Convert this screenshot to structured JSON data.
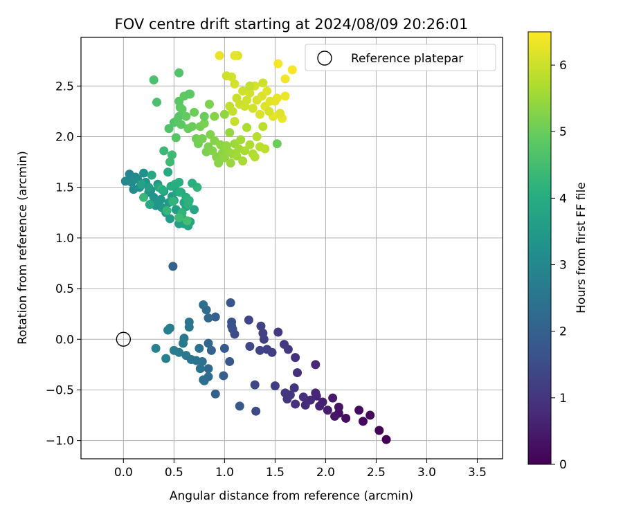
{
  "chart_data": {
    "type": "scatter",
    "title": "FOV centre drift starting at 2024/08/09 20:26:01",
    "xlabel": "Angular distance from reference (arcmin)",
    "ylabel": "Rotation from reference (arcmin)",
    "colorbar_label": "Hours from first FF file",
    "xlim": [
      -0.42,
      3.75
    ],
    "ylim": [
      -1.18,
      2.98
    ],
    "x_ticks": [
      0.0,
      0.5,
      1.0,
      1.5,
      2.0,
      2.5,
      3.0,
      3.5
    ],
    "x_tick_labels": [
      "0.0",
      "0.5",
      "1.0",
      "1.5",
      "2.0",
      "2.5",
      "3.0",
      "3.5"
    ],
    "y_ticks": [
      -1.0,
      -0.5,
      0.0,
      0.5,
      1.0,
      1.5,
      2.0,
      2.5
    ],
    "y_tick_labels": [
      "−1.0",
      "−0.5",
      "0.0",
      "0.5",
      "1.0",
      "1.5",
      "2.0",
      "2.5"
    ],
    "colorbar_range": [
      0,
      6.5
    ],
    "colorbar_ticks": [
      0,
      1,
      2,
      3,
      4,
      5,
      6
    ],
    "colorbar_tick_labels": [
      "0",
      "1",
      "2",
      "3",
      "4",
      "5",
      "6"
    ],
    "colormap": "viridis",
    "grid": true,
    "legend_position": "top-right",
    "legend": [
      {
        "label": "Reference platepar",
        "marker": "open-circle",
        "x": 0.0,
        "y": 0.0
      }
    ],
    "series": [
      {
        "points": [
          [
            2.6,
            -0.99,
            0.0
          ],
          [
            2.53,
            -0.9,
            0.05
          ],
          [
            2.44,
            -0.75,
            0.1
          ],
          [
            2.37,
            -0.81,
            0.15
          ],
          [
            2.33,
            -0.7,
            0.2
          ],
          [
            2.2,
            -0.78,
            0.25
          ],
          [
            2.13,
            -0.73,
            0.3
          ],
          [
            2.13,
            -0.67,
            0.35
          ],
          [
            2.09,
            -0.76,
            0.4
          ],
          [
            2.07,
            -0.58,
            0.45
          ],
          [
            2.02,
            -0.7,
            0.5
          ],
          [
            1.97,
            -0.62,
            0.55
          ],
          [
            1.94,
            -0.66,
            0.6
          ],
          [
            1.91,
            -0.56,
            0.65
          ],
          [
            1.9,
            -0.53,
            0.7
          ],
          [
            1.9,
            -0.25,
            0.72
          ],
          [
            1.85,
            -0.6,
            0.76
          ],
          [
            1.8,
            -0.65,
            0.8
          ],
          [
            1.78,
            -0.57,
            0.85
          ],
          [
            1.72,
            -0.33,
            0.88
          ],
          [
            1.7,
            -0.64,
            0.9
          ],
          [
            1.7,
            -0.18,
            0.93
          ],
          [
            1.69,
            -0.48,
            0.96
          ],
          [
            1.65,
            -0.55,
            1.0
          ],
          [
            1.62,
            -0.59,
            1.03
          ],
          [
            1.6,
            -0.53,
            1.06
          ],
          [
            1.63,
            -0.1,
            1.08
          ],
          [
            1.59,
            -0.05,
            1.1
          ],
          [
            1.53,
            0.07,
            1.13
          ],
          [
            1.5,
            -0.46,
            1.15
          ],
          [
            1.47,
            -0.13,
            1.18
          ],
          [
            1.42,
            -0.1,
            1.2
          ],
          [
            1.39,
            0.0,
            1.23
          ],
          [
            1.38,
            0.06,
            1.25
          ],
          [
            1.36,
            0.13,
            1.28
          ],
          [
            1.35,
            -0.11,
            1.3
          ],
          [
            1.3,
            -0.45,
            1.33
          ],
          [
            1.24,
            0.19,
            1.35
          ],
          [
            1.25,
            -0.07,
            1.38
          ],
          [
            1.31,
            -0.71,
            1.45
          ],
          [
            1.1,
            0.05,
            1.5
          ],
          [
            1.08,
            0.1,
            1.55
          ],
          [
            1.07,
            0.17,
            1.6
          ],
          [
            1.07,
            0.13,
            1.65
          ],
          [
            1.06,
            0.36,
            1.7
          ],
          [
            1.05,
            -0.22,
            1.75
          ],
          [
            1.15,
            -0.66,
            1.8
          ],
          [
            1.0,
            -0.09,
            1.85
          ],
          [
            0.99,
            -0.36,
            1.9
          ],
          [
            0.91,
            0.22,
            1.95
          ],
          [
            0.91,
            -0.54,
            2.0
          ],
          [
            0.87,
            -0.11,
            2.05
          ],
          [
            0.84,
            -0.04,
            2.1
          ],
          [
            0.84,
            0.21,
            2.15
          ],
          [
            0.84,
            -0.29,
            2.2
          ],
          [
            0.84,
            -0.37,
            2.25
          ],
          [
            0.82,
            0.29,
            2.28
          ],
          [
            0.79,
            0.34,
            2.3
          ],
          [
            0.8,
            -0.41,
            2.35
          ],
          [
            0.79,
            -0.4,
            2.38
          ],
          [
            0.78,
            -0.22,
            2.4
          ],
          [
            0.76,
            -0.29,
            2.43
          ],
          [
            0.75,
            -0.09,
            2.45
          ],
          [
            0.72,
            -0.21,
            2.48
          ],
          [
            0.67,
            -0.2,
            2.5
          ],
          [
            0.65,
            0.17,
            2.53
          ],
          [
            0.65,
            0.12,
            2.55
          ],
          [
            0.62,
            -0.16,
            2.58
          ],
          [
            0.6,
            0.01,
            2.6
          ],
          [
            0.59,
            -0.04,
            2.63
          ],
          [
            0.55,
            -0.13,
            2.66
          ],
          [
            0.5,
            -0.11,
            2.7
          ],
          [
            0.46,
            0.11,
            2.73
          ],
          [
            0.44,
            0.09,
            2.76
          ],
          [
            0.42,
            -0.19,
            2.8
          ],
          [
            0.32,
            -0.09,
            2.85
          ],
          [
            0.49,
            0.72,
            2.0
          ],
          [
            0.06,
            1.63,
            3.0
          ],
          [
            0.02,
            1.56,
            3.05
          ],
          [
            0.08,
            1.55,
            3.1
          ],
          [
            0.1,
            1.48,
            3.12
          ],
          [
            0.12,
            1.6,
            3.15
          ],
          [
            0.14,
            1.58,
            3.18
          ],
          [
            0.16,
            1.5,
            3.2
          ],
          [
            0.2,
            1.64,
            3.22
          ],
          [
            0.22,
            1.55,
            3.25
          ],
          [
            0.25,
            1.45,
            3.28
          ],
          [
            0.27,
            1.47,
            3.3
          ],
          [
            0.3,
            1.4,
            3.33
          ],
          [
            0.32,
            1.32,
            3.36
          ],
          [
            0.34,
            1.53,
            3.38
          ],
          [
            0.37,
            1.38,
            3.4
          ],
          [
            0.38,
            1.3,
            3.43
          ],
          [
            0.4,
            1.46,
            3.45
          ],
          [
            0.42,
            1.25,
            3.48
          ],
          [
            0.45,
            1.35,
            3.5
          ],
          [
            0.46,
            1.19,
            3.53
          ],
          [
            0.48,
            1.41,
            3.55
          ],
          [
            0.5,
            1.37,
            3.58
          ],
          [
            0.52,
            1.28,
            3.6
          ],
          [
            0.55,
            1.14,
            3.63
          ],
          [
            0.57,
            1.45,
            3.65
          ],
          [
            0.58,
            1.2,
            3.68
          ],
          [
            0.6,
            1.14,
            3.7
          ],
          [
            0.62,
            1.31,
            3.72
          ],
          [
            0.64,
            1.12,
            3.75
          ],
          [
            0.66,
            1.16,
            3.78
          ],
          [
            0.7,
            1.28,
            3.8
          ],
          [
            0.6,
            1.35,
            3.82
          ],
          [
            0.53,
            1.46,
            3.85
          ],
          [
            0.35,
            1.5,
            3.88
          ],
          [
            0.28,
            1.62,
            3.9
          ],
          [
            0.44,
            1.65,
            3.95
          ],
          [
            0.47,
            1.51,
            4.0
          ],
          [
            0.51,
            1.53,
            4.03
          ],
          [
            0.55,
            1.55,
            4.06
          ],
          [
            0.56,
            1.45,
            4.08
          ],
          [
            0.62,
            1.4,
            4.1
          ],
          [
            0.64,
            1.33,
            4.13
          ],
          [
            0.65,
            1.37,
            4.16
          ],
          [
            0.58,
            1.25,
            4.2
          ],
          [
            0.49,
            1.36,
            4.23
          ],
          [
            0.43,
            1.27,
            4.26
          ],
          [
            0.38,
            1.48,
            4.3
          ],
          [
            0.2,
            1.4,
            4.33
          ],
          [
            0.4,
            1.86,
            4.36
          ],
          [
            0.46,
            1.75,
            4.4
          ],
          [
            0.48,
            1.82,
            4.43
          ],
          [
            0.55,
            1.2,
            4.45
          ],
          [
            0.63,
            1.17,
            4.48
          ],
          [
            0.33,
            2.34,
            4.6
          ],
          [
            0.45,
            2.08,
            4.65
          ],
          [
            0.5,
            2.14,
            4.7
          ],
          [
            0.52,
            1.99,
            4.73
          ],
          [
            0.53,
            2.16,
            4.75
          ],
          [
            0.55,
            2.2,
            4.78
          ],
          [
            0.55,
            2.35,
            4.8
          ],
          [
            0.56,
            2.29,
            4.82
          ],
          [
            0.57,
            2.12,
            4.85
          ],
          [
            0.58,
            2.27,
            4.88
          ],
          [
            0.6,
            2.4,
            4.9
          ],
          [
            0.62,
            2.2,
            4.92
          ],
          [
            0.64,
            2.08,
            4.95
          ],
          [
            0.66,
            2.42,
            4.98
          ],
          [
            0.68,
            2.1,
            5.0
          ],
          [
            0.7,
            2.24,
            5.03
          ],
          [
            0.72,
            1.98,
            5.06
          ],
          [
            0.74,
            1.93,
            5.08
          ],
          [
            0.76,
            2.1,
            5.1
          ],
          [
            0.78,
            1.98,
            5.13
          ],
          [
            0.8,
            2.13,
            5.16
          ],
          [
            0.82,
            1.85,
            5.18
          ],
          [
            0.84,
            1.9,
            5.2
          ],
          [
            0.86,
            2.02,
            5.23
          ],
          [
            0.88,
            1.86,
            5.25
          ],
          [
            0.9,
            1.96,
            5.28
          ],
          [
            0.92,
            1.8,
            5.3
          ],
          [
            0.94,
            1.74,
            5.33
          ],
          [
            0.96,
            1.92,
            5.35
          ],
          [
            0.98,
            1.84,
            5.38
          ],
          [
            1.0,
            1.79,
            5.4
          ],
          [
            1.02,
            1.91,
            5.42
          ],
          [
            1.04,
            1.85,
            5.45
          ],
          [
            1.06,
            1.74,
            5.48
          ],
          [
            1.08,
            1.83,
            5.5
          ],
          [
            1.1,
            1.93,
            5.52
          ],
          [
            1.12,
            1.81,
            5.55
          ],
          [
            1.14,
            1.88,
            5.58
          ],
          [
            1.16,
            1.97,
            5.6
          ],
          [
            1.18,
            1.76,
            5.62
          ],
          [
            1.2,
            1.86,
            5.65
          ],
          [
            1.22,
            2.09,
            5.68
          ],
          [
            1.25,
            1.92,
            5.7
          ],
          [
            1.28,
            1.83,
            5.72
          ],
          [
            1.3,
            1.8,
            5.75
          ],
          [
            1.32,
            2.0,
            5.78
          ],
          [
            1.35,
            1.9,
            5.8
          ],
          [
            1.38,
            2.1,
            5.82
          ],
          [
            1.4,
            1.88,
            5.85
          ],
          [
            1.52,
            1.93,
            5.0
          ],
          [
            0.3,
            2.56,
            4.6
          ],
          [
            0.55,
            2.63,
            4.7
          ],
          [
            0.65,
            2.42,
            4.8
          ],
          [
            0.8,
            2.2,
            5.0
          ],
          [
            0.85,
            2.32,
            5.2
          ],
          [
            0.9,
            2.2,
            5.3
          ],
          [
            1.0,
            2.22,
            5.4
          ],
          [
            1.05,
            2.04,
            5.45
          ],
          [
            1.05,
            2.3,
            5.9
          ],
          [
            1.08,
            2.25,
            5.92
          ],
          [
            1.1,
            2.15,
            5.94
          ],
          [
            1.12,
            2.38,
            5.96
          ],
          [
            1.15,
            2.32,
            5.98
          ],
          [
            1.18,
            2.45,
            6.0
          ],
          [
            1.2,
            2.3,
            6.02
          ],
          [
            1.22,
            2.36,
            6.04
          ],
          [
            1.25,
            2.43,
            6.06
          ],
          [
            1.28,
            2.28,
            6.08
          ],
          [
            1.3,
            2.5,
            6.1
          ],
          [
            1.32,
            2.36,
            6.12
          ],
          [
            1.35,
            2.22,
            6.14
          ],
          [
            1.37,
            2.4,
            6.16
          ],
          [
            1.4,
            2.3,
            6.18
          ],
          [
            1.42,
            2.45,
            6.2
          ],
          [
            1.45,
            2.35,
            6.22
          ],
          [
            1.48,
            2.2,
            6.24
          ],
          [
            1.5,
            2.35,
            6.26
          ],
          [
            1.52,
            2.38,
            6.28
          ],
          [
            1.55,
            2.22,
            6.3
          ],
          [
            1.57,
            2.18,
            6.32
          ],
          [
            1.6,
            2.4,
            6.34
          ],
          [
            1.6,
            2.57,
            6.38
          ],
          [
            1.53,
            2.72,
            6.42
          ],
          [
            1.67,
            2.66,
            6.46
          ],
          [
            1.02,
            2.6,
            6.0
          ],
          [
            1.07,
            2.59,
            6.05
          ],
          [
            1.1,
            2.52,
            6.1
          ],
          [
            1.13,
            2.8,
            6.2
          ],
          [
            1.1,
            2.8,
            6.25
          ],
          [
            0.95,
            2.8,
            6.3
          ],
          [
            1.25,
            2.5,
            5.9
          ],
          [
            1.38,
            2.53,
            6.0
          ],
          [
            1.44,
            2.25,
            6.1
          ],
          [
            1.55,
            2.23,
            6.2
          ],
          [
            0.73,
            1.5,
            4.2
          ],
          [
            0.68,
            1.54,
            4.1
          ],
          [
            0.39,
            1.47,
            4.0
          ],
          [
            0.26,
            1.33,
            3.9
          ],
          [
            0.18,
            1.53,
            3.7
          ],
          [
            0.25,
            1.5,
            3.6
          ]
        ]
      }
    ]
  }
}
